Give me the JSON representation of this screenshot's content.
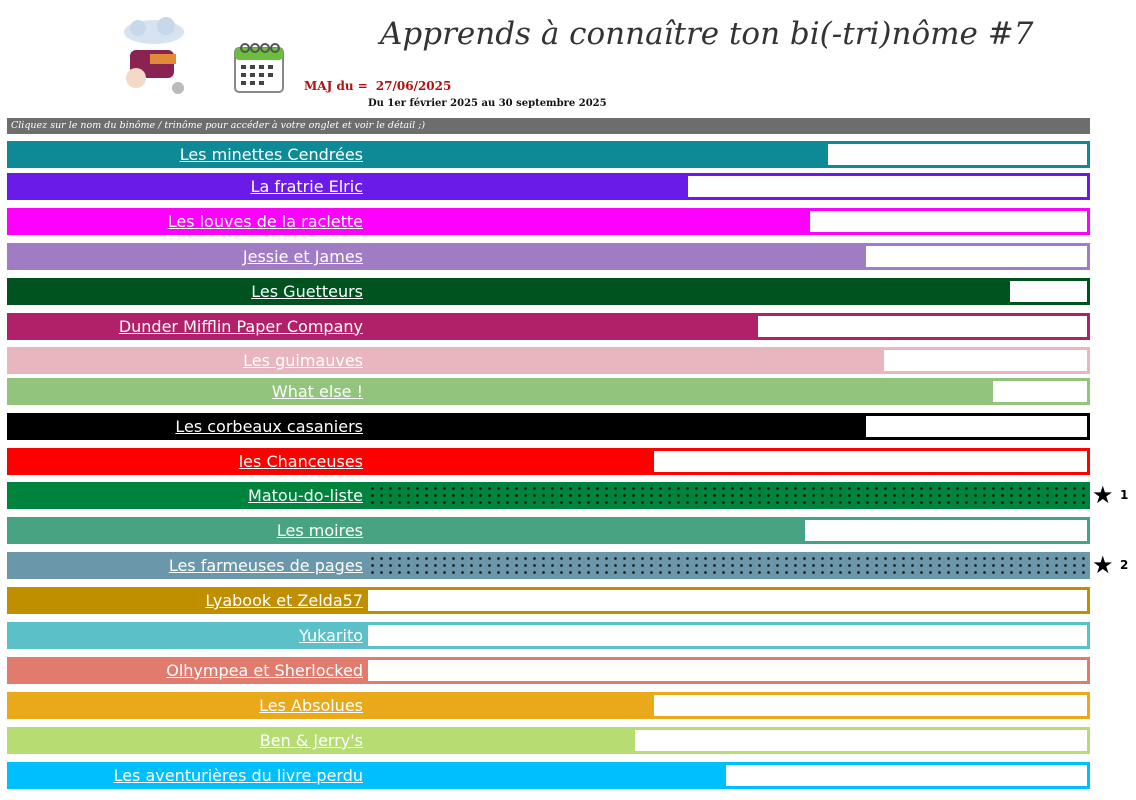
{
  "header": {
    "title": "Apprends à connaître ton bi(-tri)nôme #7",
    "maj_label": "MAJ du =",
    "maj_date": "27/06/2025",
    "period": "Du 1er février 2025 au 30 septembre 2025",
    "instruction": "Cliquez sur le nom du binôme / trinôme pour accéder à votre onglet et voir le détail ;)",
    "logo_icon": "book-club-logo-icon",
    "calendar_icon": "calendar-icon"
  },
  "teams": [
    {
      "name": "Les minettes Cendrées",
      "color": "#0e8a96",
      "progress": 0.64
    },
    {
      "name": "La fratrie Elric",
      "color": "#6a1be8",
      "progress": 0.445
    },
    {
      "name": "Les louves de la raclette",
      "color": "#ff00ff",
      "progress": 0.615
    },
    {
      "name": "Jessie et James",
      "color": "#a07cc4",
      "progress": 0.693
    },
    {
      "name": "Les Guetteurs",
      "color": "#00521f",
      "progress": 0.893
    },
    {
      "name": "Dunder Mifflin Paper Company",
      "color": "#b0216a",
      "progress": 0.543
    },
    {
      "name": "Les guimauves",
      "color": "#e7b6be",
      "progress": 0.718
    },
    {
      "name": "What else !",
      "color": "#93c47d",
      "progress": 0.869
    },
    {
      "name": "Les corbeaux casaniers",
      "color": "#000000",
      "progress": 0.693
    },
    {
      "name": "les Chanceuses",
      "color": "#ff0000",
      "progress": 0.398
    },
    {
      "name": "Matou-do-liste",
      "color": "#00843d",
      "progress": 1.0,
      "stars": true,
      "rank": "1"
    },
    {
      "name": "Les moires",
      "color": "#48a383",
      "progress": 0.608
    },
    {
      "name": "Les farmeuses de pages",
      "color": "#6a97a9",
      "progress": 1.0,
      "stars": true,
      "rank": "2"
    },
    {
      "name": "Lyabook et Zelda57",
      "color": "#bf8f00",
      "progress": 0.0
    },
    {
      "name": "Yukarito",
      "color": "#5bc0c8",
      "progress": 0.0
    },
    {
      "name": "Olhympea et Sherlocked",
      "color": "#e07b6e",
      "progress": 0.0
    },
    {
      "name": "Les Absolues",
      "color": "#eaa81b",
      "progress": 0.398
    },
    {
      "name": "Ben & Jerry's",
      "color": "#b6dd72",
      "progress": 0.372
    },
    {
      "name": "Les aventurières du livre perdu",
      "color": "#00bfff",
      "progress": 0.498
    }
  ],
  "star_icon": "star-icon"
}
